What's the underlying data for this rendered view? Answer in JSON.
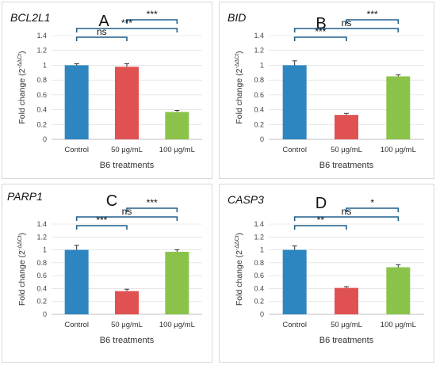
{
  "chart_data": [
    {
      "type": "bar",
      "gene": "BCL2L1",
      "panel_label": "A",
      "categories": [
        "Control",
        "50 μg/mL",
        "100 μg/mL"
      ],
      "values": [
        1.0,
        0.98,
        0.37
      ],
      "errors": [
        0.02,
        0.04,
        0.02
      ],
      "colors": [
        "#2e86c1",
        "#e05252",
        "#8bc34a"
      ],
      "xlabel": "B6 treatments",
      "ylabel_main": "Fold change (2",
      "ylabel_sup": "-ΔΔCt",
      "ylabel_close": ")",
      "ylim": [
        0,
        1.4
      ],
      "yticks": [
        "0",
        "0.2",
        "0.4",
        "0.6",
        "0.8",
        "1",
        "1.2",
        "1.4"
      ],
      "significance": [
        {
          "from": 1,
          "to": 2,
          "label": "***"
        },
        {
          "from": 0,
          "to": 2,
          "label": "***"
        },
        {
          "from": 0,
          "to": 1,
          "label": "ns"
        }
      ]
    },
    {
      "type": "bar",
      "gene": "BID",
      "panel_label": "B",
      "categories": [
        "Control",
        "50 μg/mL",
        "100 μg/mL"
      ],
      "values": [
        1.0,
        0.33,
        0.85
      ],
      "errors": [
        0.06,
        0.02,
        0.02
      ],
      "colors": [
        "#2e86c1",
        "#e05252",
        "#8bc34a"
      ],
      "xlabel": "B6 treatments",
      "ylabel_main": "Fold change (2",
      "ylabel_sup": "-ΔΔCt",
      "ylabel_close": ")",
      "ylim": [
        0,
        1.4
      ],
      "yticks": [
        "0",
        "0.2",
        "0.4",
        "0.6",
        "0.8",
        "1",
        "1.2",
        "1.4"
      ],
      "significance": [
        {
          "from": 1,
          "to": 2,
          "label": "***"
        },
        {
          "from": 0,
          "to": 2,
          "label": "ns"
        },
        {
          "from": 0,
          "to": 1,
          "label": "***"
        }
      ]
    },
    {
      "type": "bar",
      "gene": "PARP1",
      "panel_label": "C",
      "categories": [
        "Control",
        "50 μg/mL",
        "100 μg/mL"
      ],
      "values": [
        1.0,
        0.36,
        0.97
      ],
      "errors": [
        0.07,
        0.03,
        0.03
      ],
      "colors": [
        "#2e86c1",
        "#e05252",
        "#8bc34a"
      ],
      "xlabel": "B6 treatments",
      "ylabel_main": "Fold change (2",
      "ylabel_sup": "-ΔΔCt",
      "ylabel_close": ")",
      "ylim": [
        0,
        1.4
      ],
      "yticks": [
        "0",
        "0.2",
        "0.4",
        "0.6",
        "0.8",
        "1",
        "1.2",
        "1.4"
      ],
      "significance": [
        {
          "from": 1,
          "to": 2,
          "label": "***"
        },
        {
          "from": 0,
          "to": 2,
          "label": "ns"
        },
        {
          "from": 0,
          "to": 1,
          "label": "***"
        }
      ]
    },
    {
      "type": "bar",
      "gene": "CASP3",
      "panel_label": "D",
      "categories": [
        "Control",
        "50 μg/mL",
        "100 μg/mL"
      ],
      "values": [
        1.0,
        0.41,
        0.73
      ],
      "errors": [
        0.06,
        0.02,
        0.04
      ],
      "colors": [
        "#2e86c1",
        "#e05252",
        "#8bc34a"
      ],
      "xlabel": "B6 treatments",
      "ylabel_main": "Fold change (2",
      "ylabel_sup": "-ΔΔCt",
      "ylabel_close": ")",
      "ylim": [
        0,
        1.4
      ],
      "yticks": [
        "0",
        "0.2",
        "0.4",
        "0.6",
        "0.8",
        "1",
        "1.2",
        "1.4"
      ],
      "significance": [
        {
          "from": 1,
          "to": 2,
          "label": "*"
        },
        {
          "from": 0,
          "to": 2,
          "label": "ns"
        },
        {
          "from": 0,
          "to": 1,
          "label": "**"
        }
      ]
    }
  ],
  "colors": {
    "bracket": "#1f5f8b",
    "gridline": "#d9d9d9",
    "axis": "#bfbfbf"
  }
}
